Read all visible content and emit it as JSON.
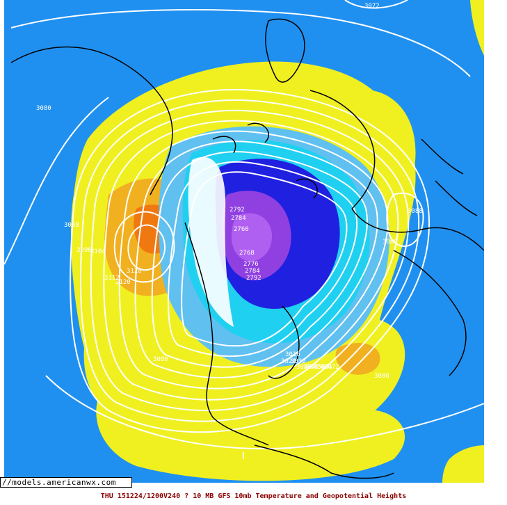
{
  "map": {
    "title": "? 10 MB GFS 10mb Temperature and Geopotential Heights",
    "colors": {
      "background": "#2090f0",
      "warm_yellow": "#f0f020",
      "warm_orange": "#f0b020",
      "warm_dark_orange": "#f07810",
      "cold_cyan": "#20d0f0",
      "cold_light_blue": "#60c0f0",
      "cold_blue": "#2020e0",
      "cold_violet": "#9040e0",
      "cold_purple": "#b060f0",
      "contour": "#ffffff",
      "coastline": "#000000"
    },
    "contour_labels": [
      "3072",
      "3080",
      "3088",
      "3096",
      "3104",
      "3112",
      "3120",
      "3128",
      "3088",
      "3080",
      "3080",
      "3080",
      "2768",
      "2776",
      "2784",
      "2792",
      "2760",
      "2784",
      "2792",
      "3016",
      "3024",
      "3032",
      "3040",
      "3048",
      "3056",
      "3064",
      "3072"
    ]
  },
  "footer": {
    "source": "//models.americanwx.com",
    "timestamp": "THU 151224/1200V240",
    "caption": "THU 151224/1200V240  ? 10 MB GFS 10mb Temperature and Geopotential Heights"
  }
}
